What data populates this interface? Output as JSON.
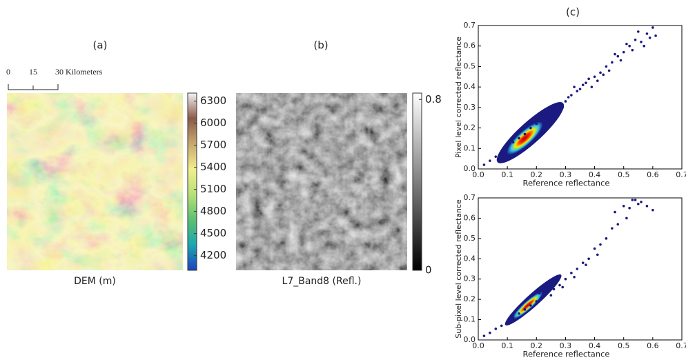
{
  "chart_data": [
    {
      "type": "image",
      "title": "(a)",
      "caption": "DEM (m)",
      "colormap": [
        "#2040c0",
        "#1aa7b0",
        "#5cc070",
        "#b8e07a",
        "#f2ee8c",
        "#c8a870",
        "#8a5a48",
        "#f4f4f4"
      ],
      "clim": [
        4000,
        6410
      ],
      "cticks": [
        4200,
        4500,
        4800,
        5100,
        5400,
        5700,
        6000,
        6300
      ],
      "scale_bar": [
        "0",
        "15",
        "30 Kilometers"
      ]
    },
    {
      "type": "image",
      "title": "(b)",
      "caption": "L7_Band8 (Refl.)",
      "colormap": [
        "#000000",
        "#ffffff"
      ],
      "clim": [
        0,
        0.83
      ],
      "cticks": [
        0,
        0.8
      ]
    },
    {
      "type": "scatter",
      "title": "(c)",
      "x_label": "Reference reflectance",
      "y_label": "Pixel level corrected reflectance",
      "color": "#1a1a80",
      "xlim": [
        0,
        0.7
      ],
      "ylim": [
        0,
        0.7
      ],
      "xticks": [
        {
          "value": 0,
          "label": "0.0"
        },
        0.1,
        0.2,
        0.3,
        0.4,
        0.5,
        0.6,
        0.7
      ],
      "yticks": [
        {
          "value": 0,
          "label": "0.0"
        },
        0.1,
        0.2,
        0.3,
        0.4,
        0.5,
        0.6,
        0.7
      ],
      "x": [
        0.02,
        0.04,
        0.06,
        0.08,
        0.1,
        0.12,
        0.14,
        0.16,
        0.18,
        0.2,
        0.22,
        0.24,
        0.26,
        0.28,
        0.3,
        0.32,
        0.34,
        0.36,
        0.38,
        0.4,
        0.42,
        0.44,
        0.46,
        0.48,
        0.5,
        0.52,
        0.54,
        0.56,
        0.58,
        0.6,
        0.33,
        0.37,
        0.41,
        0.45,
        0.49,
        0.53,
        0.57,
        0.61,
        0.29,
        0.27,
        0.31,
        0.35,
        0.39,
        0.43,
        0.47,
        0.51,
        0.55,
        0.59,
        0.25,
        0.23
      ],
      "y": [
        0.02,
        0.04,
        0.06,
        0.08,
        0.11,
        0.13,
        0.15,
        0.17,
        0.2,
        0.22,
        0.25,
        0.27,
        0.3,
        0.31,
        0.33,
        0.36,
        0.38,
        0.41,
        0.44,
        0.45,
        0.47,
        0.5,
        0.52,
        0.55,
        0.57,
        0.6,
        0.63,
        0.62,
        0.66,
        0.69,
        0.4,
        0.42,
        0.43,
        0.48,
        0.53,
        0.58,
        0.6,
        0.65,
        0.3,
        0.28,
        0.35,
        0.39,
        0.4,
        0.46,
        0.56,
        0.61,
        0.67,
        0.64,
        0.26,
        0.24
      ]
    },
    {
      "type": "scatter",
      "x_label": "Reference reflectance",
      "y_label": "Sub-pixel level corrected reflectance",
      "color": "#1a1a80",
      "xlim": [
        0,
        0.7
      ],
      "ylim": [
        0,
        0.7
      ],
      "xticks": [
        {
          "value": 0,
          "label": "0.0"
        },
        0.1,
        0.2,
        0.3,
        0.4,
        0.5,
        0.6,
        0.7
      ],
      "yticks": [
        {
          "value": 0,
          "label": "0.0"
        },
        0.1,
        0.2,
        0.3,
        0.4,
        0.5,
        0.6,
        0.7
      ],
      "x": [
        0.02,
        0.04,
        0.06,
        0.08,
        0.1,
        0.12,
        0.14,
        0.16,
        0.18,
        0.2,
        0.22,
        0.24,
        0.26,
        0.28,
        0.3,
        0.32,
        0.34,
        0.36,
        0.38,
        0.4,
        0.42,
        0.44,
        0.46,
        0.48,
        0.5,
        0.52,
        0.54,
        0.56,
        0.58,
        0.6,
        0.47,
        0.51,
        0.55,
        0.41,
        0.37,
        0.33,
        0.29,
        0.25,
        0.21,
        0.53
      ],
      "y": [
        0.02,
        0.035,
        0.055,
        0.07,
        0.09,
        0.11,
        0.13,
        0.15,
        0.17,
        0.19,
        0.21,
        0.24,
        0.25,
        0.27,
        0.3,
        0.33,
        0.35,
        0.38,
        0.4,
        0.45,
        0.47,
        0.5,
        0.55,
        0.57,
        0.66,
        0.65,
        0.69,
        0.68,
        0.66,
        0.64,
        0.63,
        0.6,
        0.67,
        0.42,
        0.37,
        0.31,
        0.26,
        0.22,
        0.23,
        0.69
      ]
    }
  ]
}
